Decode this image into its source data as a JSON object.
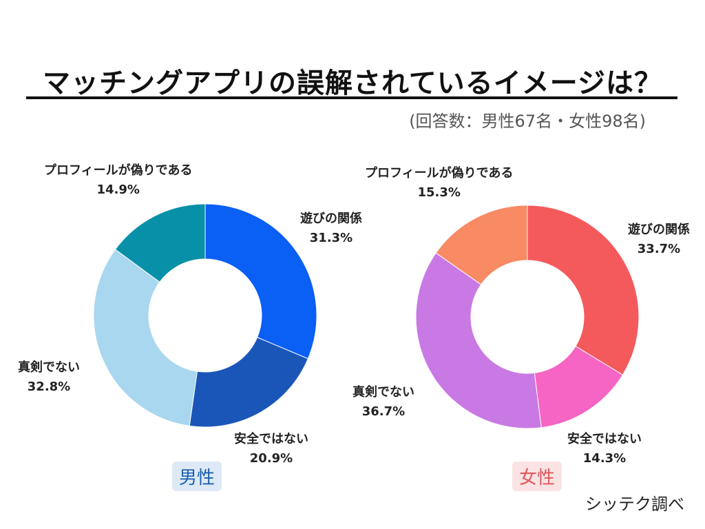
{
  "title": "マッチングアプリの誤解されているイメージは？",
  "subtitle": "(回答数：男性67名・女性98名)",
  "source": "シッテク調べ",
  "colors": {
    "male_badge_bg": "#dde9f6",
    "male_badge_text": "#1b5fae",
    "female_badge_bg": "#fbe3e3",
    "female_badge_text": "#e0575f"
  },
  "chart_data": [
    {
      "type": "pie",
      "donut": true,
      "group_label": "男性",
      "categories": [
        "遊びの関係",
        "安全ではない",
        "真剣でない",
        "プロフィールが偽りである"
      ],
      "values": [
        31.3,
        20.9,
        32.8,
        14.9
      ],
      "value_labels": [
        "31.3%",
        "20.9%",
        "32.8%",
        "14.9%"
      ],
      "colors": [
        "#0a5ff5",
        "#1a56b8",
        "#a8d7ef",
        "#0890a8"
      ]
    },
    {
      "type": "pie",
      "donut": true,
      "group_label": "女性",
      "categories": [
        "遊びの関係",
        "安全ではない",
        "真剣でない",
        "プロフィールが偽りである"
      ],
      "values": [
        33.7,
        14.3,
        36.7,
        15.3
      ],
      "value_labels": [
        "33.7%",
        "14.3%",
        "36.7%",
        "15.3%"
      ],
      "colors": [
        "#f45a5c",
        "#f664c4",
        "#c979e4",
        "#f88a64"
      ]
    }
  ]
}
